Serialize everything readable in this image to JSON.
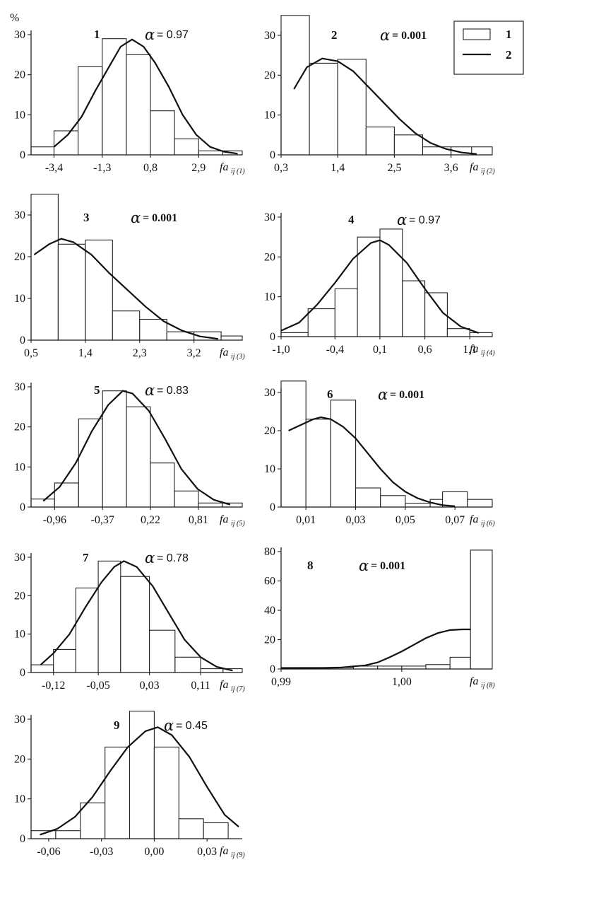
{
  "y_unit": "%",
  "legend": {
    "entries": [
      {
        "key": "1",
        "kind": "bar"
      },
      {
        "key": "2",
        "kind": "line"
      }
    ]
  },
  "chart_data": [
    {
      "type": "bar",
      "panel": "1",
      "alpha_symbol": "α",
      "alpha_value": "= 0.97",
      "alpha_bold": false,
      "xlabel": "fa",
      "xlabel_sub": "ij (1)",
      "xlim": [
        -4.4,
        4.8
      ],
      "ylim": [
        0,
        30
      ],
      "yticks": [
        0,
        10,
        20,
        30
      ],
      "xtick_labels": [
        {
          "v": -3.4,
          "t": "-3,4"
        },
        {
          "v": -1.3,
          "t": "-1,3"
        },
        {
          "v": 0.8,
          "t": "0,8"
        },
        {
          "v": 2.9,
          "t": "2,9"
        }
      ],
      "bin_edges": [
        -4.4,
        -3.4,
        -2.35,
        -1.3,
        -0.25,
        0.8,
        1.85,
        2.9,
        3.95,
        4.8
      ],
      "values": [
        2,
        6,
        22,
        29,
        25,
        11,
        4,
        1,
        1
      ],
      "curve": [
        [
          -3.4,
          2
        ],
        [
          -2.8,
          5
        ],
        [
          -2.2,
          9.5
        ],
        [
          -1.6,
          16
        ],
        [
          -1.0,
          22
        ],
        [
          -0.5,
          27
        ],
        [
          0.0,
          28.8
        ],
        [
          0.5,
          27
        ],
        [
          1.0,
          23
        ],
        [
          1.6,
          17
        ],
        [
          2.2,
          10
        ],
        [
          2.8,
          5
        ],
        [
          3.4,
          2
        ],
        [
          4.0,
          0.8
        ],
        [
          4.6,
          0.3
        ]
      ]
    },
    {
      "type": "bar",
      "panel": "2",
      "alpha_symbol": "α",
      "alpha_value": "= 0.001",
      "alpha_bold": true,
      "xlabel": "fa",
      "xlabel_sub": "ij (2)",
      "xlim": [
        0.3,
        4.4
      ],
      "ylim": [
        0,
        30
      ],
      "yticks": [
        0,
        10,
        20,
        30
      ],
      "xtick_labels": [
        {
          "v": 0.3,
          "t": "0,3"
        },
        {
          "v": 1.4,
          "t": "1,4"
        },
        {
          "v": 2.5,
          "t": "2,5"
        },
        {
          "v": 3.6,
          "t": "3,6"
        }
      ],
      "bin_edges": [
        0.3,
        0.85,
        1.4,
        1.95,
        2.5,
        3.05,
        3.6,
        4.0,
        4.4
      ],
      "values": [
        35,
        23,
        24,
        7,
        5,
        2,
        2,
        2
      ],
      "curve": [
        [
          0.55,
          16.5
        ],
        [
          0.8,
          22
        ],
        [
          1.1,
          24.2
        ],
        [
          1.4,
          23.5
        ],
        [
          1.7,
          21
        ],
        [
          2.0,
          17
        ],
        [
          2.3,
          13
        ],
        [
          2.6,
          9
        ],
        [
          2.9,
          5.5
        ],
        [
          3.2,
          3
        ],
        [
          3.5,
          1.5
        ],
        [
          3.8,
          0.6
        ],
        [
          4.1,
          0.2
        ]
      ]
    },
    {
      "type": "bar",
      "panel": "3",
      "alpha_symbol": "α",
      "alpha_value": "= 0.001",
      "alpha_bold": true,
      "xlabel": "fa",
      "xlabel_sub": "ij (3)",
      "xlim": [
        0.5,
        4.0
      ],
      "ylim": [
        0,
        30
      ],
      "yticks": [
        0,
        10,
        20,
        30
      ],
      "xtick_labels": [
        {
          "v": 0.5,
          "t": "0,5"
        },
        {
          "v": 1.4,
          "t": "1,4"
        },
        {
          "v": 2.3,
          "t": "2,3"
        },
        {
          "v": 3.2,
          "t": "3,2"
        }
      ],
      "bin_edges": [
        0.5,
        0.95,
        1.4,
        1.85,
        2.3,
        2.75,
        3.2,
        3.65,
        4.0
      ],
      "values": [
        35,
        23,
        24,
        7,
        5,
        2,
        2,
        1
      ],
      "curve": [
        [
          0.55,
          20.5
        ],
        [
          0.8,
          23
        ],
        [
          1.0,
          24.3
        ],
        [
          1.2,
          23.5
        ],
        [
          1.5,
          20.5
        ],
        [
          1.8,
          16
        ],
        [
          2.1,
          12
        ],
        [
          2.4,
          8
        ],
        [
          2.7,
          4.5
        ],
        [
          3.0,
          2.3
        ],
        [
          3.3,
          0.9
        ],
        [
          3.6,
          0.3
        ]
      ]
    },
    {
      "type": "bar",
      "panel": "4",
      "alpha_symbol": "α",
      "alpha_value": "= 0.97",
      "alpha_bold": false,
      "xlabel": "fa",
      "xlabel_sub": "ij (4)",
      "xlim": [
        -1.0,
        1.35
      ],
      "ylim": [
        0,
        30
      ],
      "yticks": [
        0,
        10,
        20,
        30
      ],
      "xtick_labels": [
        {
          "v": -1.0,
          "t": "-1,0"
        },
        {
          "v": -0.4,
          "t": "-0,4"
        },
        {
          "v": 0.1,
          "t": "0,1"
        },
        {
          "v": 0.6,
          "t": "0,6"
        },
        {
          "v": 1.1,
          "t": "1,1"
        }
      ],
      "bin_edges": [
        -1.0,
        -0.7,
        -0.4,
        -0.15,
        0.1,
        0.35,
        0.6,
        0.85,
        1.1,
        1.35
      ],
      "values": [
        1,
        7,
        12,
        25,
        27,
        14,
        11,
        2,
        1
      ],
      "curve": [
        [
          -1.0,
          1.5
        ],
        [
          -0.8,
          3.5
        ],
        [
          -0.6,
          8
        ],
        [
          -0.4,
          13.5
        ],
        [
          -0.2,
          19.5
        ],
        [
          0.0,
          23.5
        ],
        [
          0.1,
          24.2
        ],
        [
          0.2,
          23
        ],
        [
          0.4,
          18.5
        ],
        [
          0.6,
          12
        ],
        [
          0.8,
          6
        ],
        [
          1.0,
          2.5
        ],
        [
          1.2,
          0.9
        ]
      ]
    },
    {
      "type": "bar",
      "panel": "5",
      "alpha_symbol": "α",
      "alpha_value": "= 0.83",
      "alpha_bold": false,
      "xlabel": "fa",
      "xlabel_sub": "ij (5)",
      "xlim": [
        -1.25,
        1.35
      ],
      "ylim": [
        0,
        30
      ],
      "yticks": [
        0,
        10,
        20,
        30
      ],
      "xtick_labels": [
        {
          "v": -0.96,
          "t": "-0,96"
        },
        {
          "v": -0.37,
          "t": "-0,37"
        },
        {
          "v": 0.22,
          "t": "0,22"
        },
        {
          "v": 0.81,
          "t": "0,81"
        }
      ],
      "bin_edges": [
        -1.25,
        -0.96,
        -0.665,
        -0.37,
        -0.075,
        0.22,
        0.515,
        0.81,
        1.105,
        1.35
      ],
      "values": [
        2,
        6,
        22,
        29,
        25,
        11,
        4,
        1,
        1
      ],
      "curve": [
        [
          -1.1,
          1.5
        ],
        [
          -0.9,
          5
        ],
        [
          -0.7,
          11
        ],
        [
          -0.5,
          19
        ],
        [
          -0.3,
          25.5
        ],
        [
          -0.12,
          29
        ],
        [
          0.0,
          28.3
        ],
        [
          0.2,
          24
        ],
        [
          0.4,
          17
        ],
        [
          0.6,
          9.5
        ],
        [
          0.8,
          4.5
        ],
        [
          1.0,
          1.8
        ],
        [
          1.2,
          0.6
        ]
      ]
    },
    {
      "type": "bar",
      "panel": "6",
      "alpha_symbol": "α",
      "alpha_value": "= 0.001",
      "alpha_bold": true,
      "xlabel": "fa",
      "xlabel_sub": "ij (6)",
      "xlim": [
        0.0,
        0.085
      ],
      "ylim": [
        0,
        30
      ],
      "yticks": [
        0,
        10,
        20,
        30
      ],
      "xtick_labels": [
        {
          "v": 0.01,
          "t": "0,01"
        },
        {
          "v": 0.03,
          "t": "0,03"
        },
        {
          "v": 0.05,
          "t": "0,05"
        },
        {
          "v": 0.07,
          "t": "0,07"
        }
      ],
      "bin_edges": [
        0.0,
        0.01,
        0.02,
        0.03,
        0.04,
        0.05,
        0.06,
        0.065,
        0.075,
        0.085
      ],
      "values": [
        33,
        23,
        28,
        5,
        3,
        1,
        2,
        4,
        2
      ],
      "curve": [
        [
          0.003,
          20
        ],
        [
          0.008,
          21.5
        ],
        [
          0.013,
          23
        ],
        [
          0.016,
          23.5
        ],
        [
          0.02,
          23
        ],
        [
          0.025,
          21
        ],
        [
          0.03,
          18
        ],
        [
          0.035,
          14
        ],
        [
          0.04,
          10
        ],
        [
          0.045,
          6.5
        ],
        [
          0.05,
          4
        ],
        [
          0.055,
          2.3
        ],
        [
          0.06,
          1.2
        ],
        [
          0.065,
          0.5
        ],
        [
          0.07,
          0.2
        ]
      ]
    },
    {
      "type": "bar",
      "panel": "7",
      "alpha_symbol": "α",
      "alpha_value": "= 0.78",
      "alpha_bold": false,
      "xlabel": "fa",
      "xlabel_sub": "ij (7)",
      "xlim": [
        -0.155,
        0.175
      ],
      "ylim": [
        0,
        30
      ],
      "yticks": [
        0,
        10,
        20,
        30
      ],
      "xtick_labels": [
        {
          "v": -0.12,
          "t": "-0,12"
        },
        {
          "v": -0.05,
          "t": "-0,05"
        },
        {
          "v": 0.03,
          "t": "0,03"
        },
        {
          "v": 0.11,
          "t": "0,11"
        }
      ],
      "bin_edges": [
        -0.155,
        -0.12,
        -0.085,
        -0.05,
        -0.015,
        0.03,
        0.07,
        0.11,
        0.145,
        0.175
      ],
      "values": [
        2,
        6,
        22,
        29,
        25,
        11,
        4,
        1,
        1
      ],
      "curve": [
        [
          -0.14,
          2
        ],
        [
          -0.12,
          5
        ],
        [
          -0.095,
          10
        ],
        [
          -0.07,
          17
        ],
        [
          -0.045,
          23.5
        ],
        [
          -0.025,
          27.5
        ],
        [
          -0.01,
          29
        ],
        [
          0.01,
          27.5
        ],
        [
          0.035,
          22.5
        ],
        [
          0.06,
          15.5
        ],
        [
          0.085,
          8.5
        ],
        [
          0.11,
          4
        ],
        [
          0.135,
          1.5
        ],
        [
          0.16,
          0.5
        ]
      ]
    },
    {
      "type": "bar",
      "panel": "8",
      "alpha_symbol": "α",
      "alpha_value": "= 0.001",
      "alpha_bold": true,
      "xlabel": "fa",
      "xlabel_sub": "ij (8)",
      "xlim": [
        0.99,
        1.0075
      ],
      "ylim": [
        0,
        80
      ],
      "yticks": [
        0,
        20,
        40,
        60,
        80
      ],
      "xtick_labels": [
        {
          "v": 0.99,
          "t": "0,99"
        },
        {
          "v": 1.0,
          "t": "1,00"
        }
      ],
      "bin_edges": [
        0.99,
        0.992,
        0.994,
        0.996,
        0.998,
        1.0,
        1.002,
        1.004,
        1.0057,
        1.0075
      ],
      "values": [
        1,
        1,
        1,
        2,
        2,
        2,
        3,
        8,
        81
      ],
      "curve": [
        [
          0.99,
          0.3
        ],
        [
          0.993,
          0.6
        ],
        [
          0.995,
          1.0
        ],
        [
          0.997,
          2.5
        ],
        [
          0.998,
          4.5
        ],
        [
          0.999,
          8
        ],
        [
          1.0,
          12
        ],
        [
          1.001,
          16.5
        ],
        [
          1.002,
          21
        ],
        [
          1.003,
          24.5
        ],
        [
          1.004,
          26.5
        ],
        [
          1.005,
          27
        ],
        [
          1.0057,
          27
        ]
      ]
    },
    {
      "type": "bar",
      "panel": "9",
      "alpha_symbol": "α",
      "alpha_value": "= 0.45",
      "alpha_bold": false,
      "xlabel": "fa",
      "xlabel_sub": "ij (9)",
      "xlim": [
        -0.07,
        0.05
      ],
      "ylim": [
        0,
        30
      ],
      "yticks": [
        0,
        10,
        20,
        30
      ],
      "xtick_labels": [
        {
          "v": -0.06,
          "t": "-0,06"
        },
        {
          "v": -0.03,
          "t": "-0,03"
        },
        {
          "v": 0.0,
          "t": "0,00"
        },
        {
          "v": 0.03,
          "t": "0,03"
        }
      ],
      "bin_edges": [
        -0.07,
        -0.056,
        -0.042,
        -0.028,
        -0.014,
        0.0,
        0.014,
        0.028,
        0.042,
        0.05
      ],
      "values": [
        2,
        2,
        9,
        23,
        32,
        23,
        5,
        4,
        0
      ],
      "curve": [
        [
          -0.065,
          1
        ],
        [
          -0.055,
          2.5
        ],
        [
          -0.045,
          5.5
        ],
        [
          -0.035,
          10.5
        ],
        [
          -0.025,
          17
        ],
        [
          -0.015,
          23
        ],
        [
          -0.005,
          27
        ],
        [
          0.002,
          28
        ],
        [
          0.01,
          26
        ],
        [
          0.02,
          20.5
        ],
        [
          0.03,
          13
        ],
        [
          0.04,
          6
        ],
        [
          0.048,
          3
        ]
      ]
    }
  ]
}
